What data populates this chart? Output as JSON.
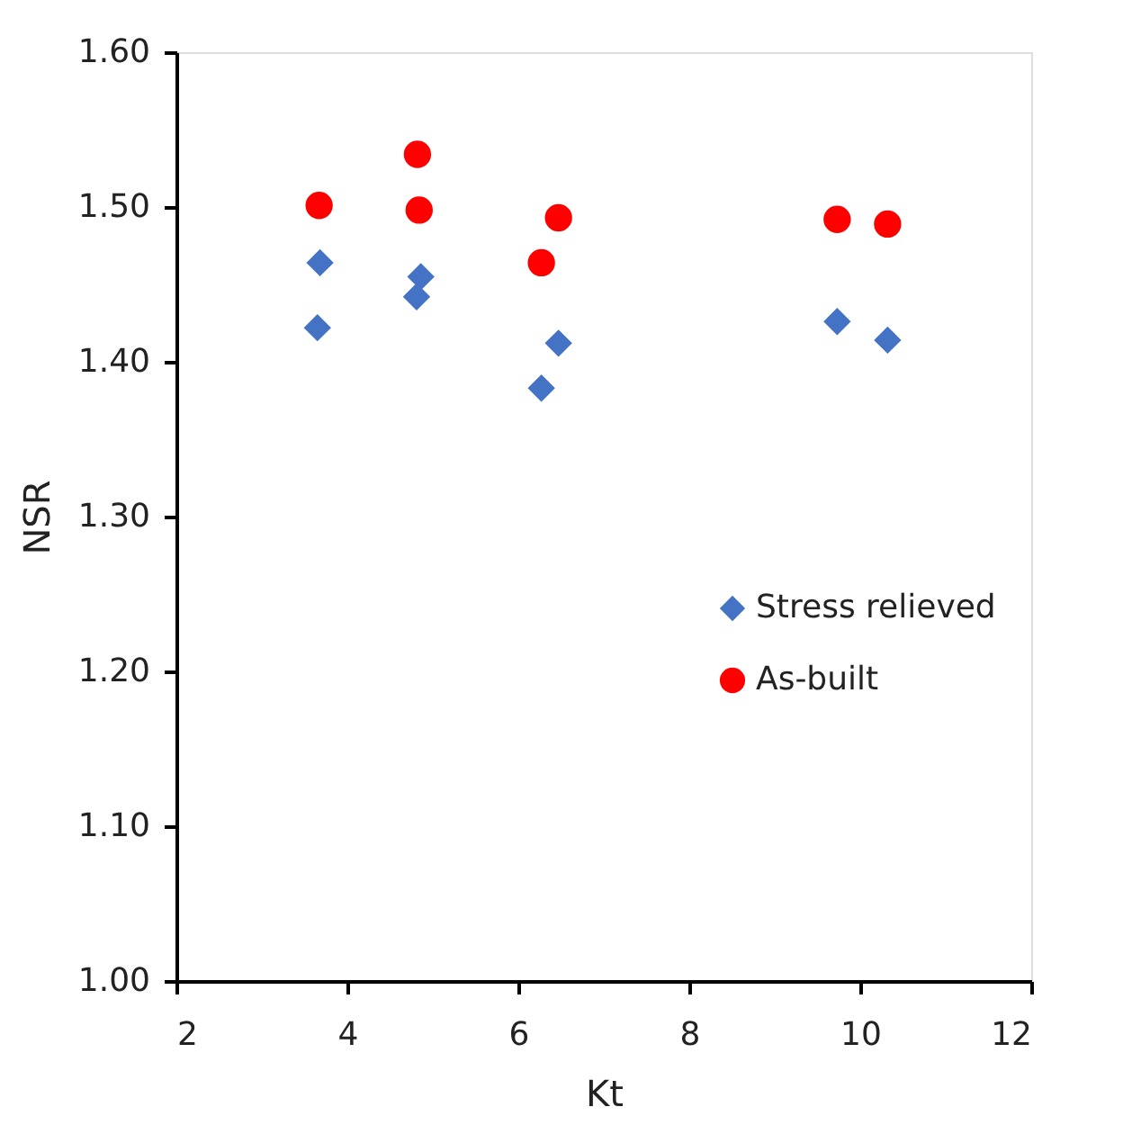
{
  "chart_data": {
    "type": "scatter",
    "xlabel": "Kt",
    "ylabel": "NSR",
    "xlim": [
      2,
      12
    ],
    "xticks": [
      2,
      4,
      6,
      8,
      10,
      12
    ],
    "ylim": [
      1.0,
      1.6
    ],
    "yticks": [
      {
        "value": 1.0,
        "label": "1.00"
      },
      {
        "value": 1.1,
        "label": "1.10"
      },
      {
        "value": 1.2,
        "label": "1.20"
      },
      {
        "value": 1.3,
        "label": "1.30"
      },
      {
        "value": 1.4,
        "label": "1.40"
      },
      {
        "value": 1.5,
        "label": "1.50"
      },
      {
        "value": 1.6,
        "label": "1.60"
      }
    ],
    "grid": false,
    "legend": "right",
    "series": [
      {
        "name": "Stress relieved",
        "color": "#4472c4",
        "marker": "diamond",
        "x": [
          3.68,
          3.65,
          4.86,
          4.81,
          6.47,
          6.27,
          9.73,
          10.32
        ],
        "values": [
          1.464,
          1.422,
          1.455,
          1.442,
          1.412,
          1.383,
          1.426,
          1.414
        ]
      },
      {
        "name": "As-built",
        "color": "#ff0000",
        "marker": "circle",
        "x": [
          3.67,
          4.82,
          4.84,
          6.47,
          6.27,
          9.73,
          10.32
        ],
        "values": [
          1.501,
          1.534,
          1.498,
          1.493,
          1.464,
          1.492,
          1.489
        ]
      }
    ]
  }
}
